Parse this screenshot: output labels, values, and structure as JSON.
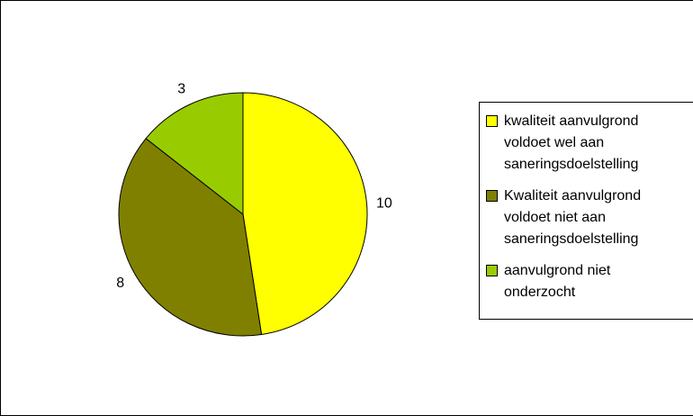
{
  "chart_data": {
    "type": "pie",
    "categories": [
      "kwaliteit aanvulgrond voldoet wel aan saneringsdoelstelling",
      "Kwaliteit aanvulgrond voldoet niet aan saneringsdoelstelling",
      "aanvulgrond niet onderzocht"
    ],
    "values": [
      10,
      8,
      3
    ],
    "colors": [
      "#ffff00",
      "#808000",
      "#99cc00"
    ],
    "legend": "right"
  }
}
